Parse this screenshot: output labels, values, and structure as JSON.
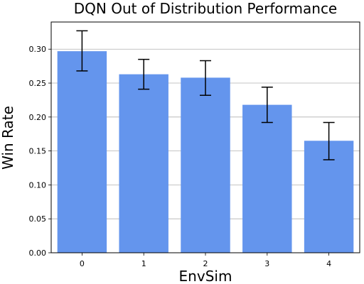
{
  "chart_data": {
    "type": "bar",
    "title": "DQN Out of Distribution Performance",
    "xlabel": "EnvSim",
    "ylabel": "Win Rate",
    "categories": [
      "0",
      "1",
      "2",
      "3",
      "4"
    ],
    "values": [
      0.297,
      0.263,
      0.258,
      0.218,
      0.165
    ],
    "errors": [
      [
        0.268,
        0.327
      ],
      [
        0.241,
        0.285
      ],
      [
        0.232,
        0.283
      ],
      [
        0.192,
        0.244
      ],
      [
        0.137,
        0.192
      ]
    ],
    "ylim": [
      0,
      0.34
    ],
    "yticks": [
      "0.00",
      "0.05",
      "0.10",
      "0.15",
      "0.20",
      "0.25",
      "0.30"
    ],
    "grid": "y",
    "bar_color": "#6495ed",
    "grid_color": "#b0b0b0",
    "error_color": "#000000"
  }
}
